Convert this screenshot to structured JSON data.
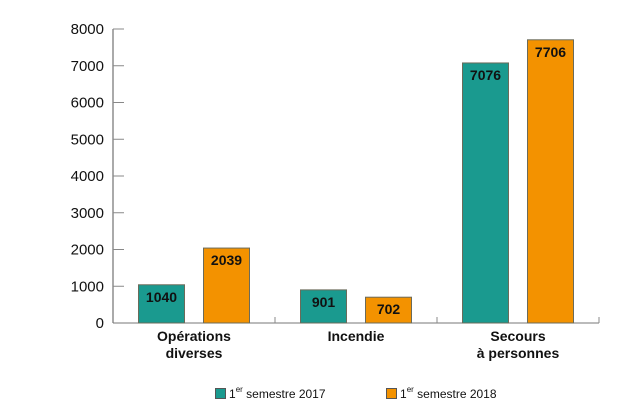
{
  "chart_data": {
    "type": "bar",
    "title": "",
    "xlabel": "",
    "ylabel": "",
    "ylim": [
      0,
      8000
    ],
    "yticks": [
      0,
      1000,
      2000,
      3000,
      4000,
      5000,
      6000,
      7000,
      8000
    ],
    "categories": [
      [
        "Opérations",
        "diverses"
      ],
      [
        "Incendie"
      ],
      [
        "Secours",
        "à personnes"
      ]
    ],
    "series": [
      {
        "name": "1er semestre 2017",
        "name_base": "1",
        "name_sup": "er",
        "name_rest": " semestre 2017",
        "color": "#1a9a8f",
        "values": [
          1040,
          901,
          7076
        ]
      },
      {
        "name": "1er semestre 2018",
        "name_base": "1",
        "name_sup": "er",
        "name_rest": " semestre 2018",
        "color": "#f39200",
        "values": [
          2039,
          702,
          7706
        ]
      }
    ],
    "grid": false,
    "legend_position": "bottom"
  }
}
